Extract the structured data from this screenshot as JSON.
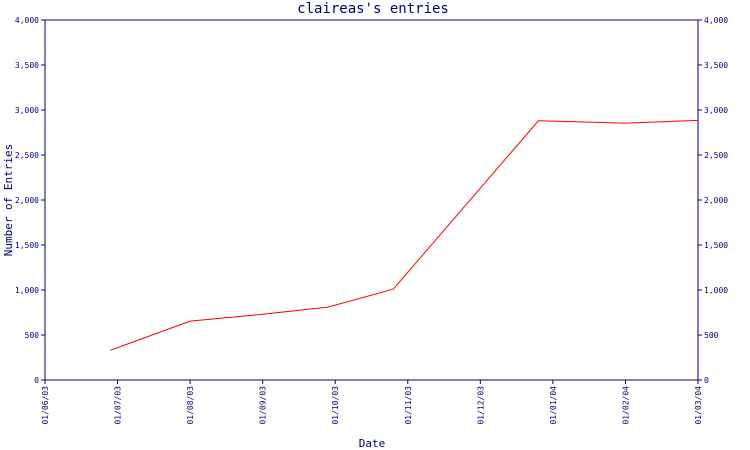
{
  "chart_data": {
    "type": "line",
    "title": "claireas's entries",
    "xlabel": "Date",
    "ylabel": "Number of Entries",
    "x_tick_labels": [
      "01/06/03",
      "01/07/03",
      "01/08/03",
      "01/09/03",
      "01/10/03",
      "01/11/03",
      "01/12/03",
      "01/01/04",
      "01/02/04",
      "01/03/04"
    ],
    "y_tick_labels": [
      "0",
      "500",
      "1,000",
      "1,500",
      "2,000",
      "2,500",
      "3,000",
      "3,500",
      "4,000"
    ],
    "y_tick_values": [
      0,
      500,
      1000,
      1500,
      2000,
      2500,
      3000,
      3500,
      4000
    ],
    "ylim": [
      0,
      4000
    ],
    "xlim_months": [
      0,
      9
    ],
    "series": [
      {
        "color": "#ff0000",
        "points": [
          {
            "x": 0.9,
            "y": 330
          },
          {
            "x": 2.0,
            "y": 655
          },
          {
            "x": 3.0,
            "y": 730
          },
          {
            "x": 3.9,
            "y": 810
          },
          {
            "x": 4.8,
            "y": 1010
          },
          {
            "x": 6.8,
            "y": 2880
          },
          {
            "x": 8.0,
            "y": 2855
          },
          {
            "x": 9.0,
            "y": 2885
          }
        ]
      }
    ],
    "grid": false,
    "right_axis_duplicate": true
  }
}
